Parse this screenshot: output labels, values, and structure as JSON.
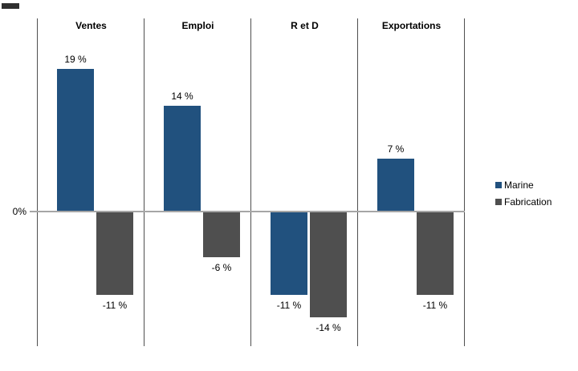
{
  "chart_data": {
    "type": "bar",
    "categories": [
      "Ventes",
      "Emploi",
      "R et D",
      "Exportations"
    ],
    "series": [
      {
        "name": "Marine",
        "color": "#21517E",
        "values": [
          19,
          14,
          -11,
          7
        ]
      },
      {
        "name": "Fabrication",
        "color": "#4F4F4F",
        "values": [
          -11,
          -6,
          -14,
          -11
        ]
      }
    ],
    "data_labels": [
      [
        "19 %",
        "14 %",
        "-11 %",
        "7 %"
      ],
      [
        "-11 %",
        "-6 %",
        "-14 %",
        "-11 %"
      ]
    ],
    "title": "",
    "xlabel": "",
    "ylabel": "",
    "axis_zero_label": "0%",
    "ylim": [
      -18,
      26
    ],
    "grid": false,
    "legend_position": "right"
  },
  "legend": {
    "items": [
      {
        "label": "Marine",
        "color": "#21517E"
      },
      {
        "label": "Fabrication",
        "color": "#4F4F4F"
      }
    ]
  },
  "axis": {
    "zero_label": "0%"
  },
  "colors": {
    "bar_marine": "#21517E",
    "bar_fabrication": "#4F4F4F",
    "panel_line": "#4F4F4F",
    "zero_line": "#A6A6A6",
    "text": "#000000",
    "background": "#FFFFFF"
  }
}
